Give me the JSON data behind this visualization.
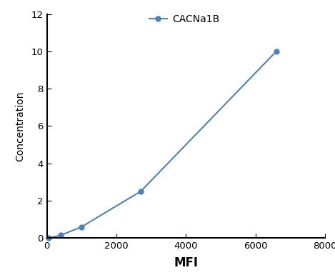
{
  "x": [
    50,
    400,
    1000,
    2700,
    6600
  ],
  "y": [
    0.0,
    0.15,
    0.6,
    2.5,
    10.0
  ],
  "line_color": "#4F81BD",
  "marker": "o",
  "marker_size": 5,
  "marker_facecolor": "#4F81BD",
  "legend_label": "CACNa1B",
  "xlabel": "MFI",
  "ylabel": "Concentration",
  "xlim": [
    0,
    8000
  ],
  "ylim": [
    0,
    12
  ],
  "xticks": [
    0,
    2000,
    4000,
    6000,
    8000
  ],
  "yticks": [
    0,
    2,
    4,
    6,
    8,
    10,
    12
  ],
  "xlabel_fontsize": 12,
  "ylabel_fontsize": 10,
  "tick_fontsize": 9.5,
  "legend_fontsize": 10,
  "linewidth": 1.5,
  "background_color": "#ffffff"
}
